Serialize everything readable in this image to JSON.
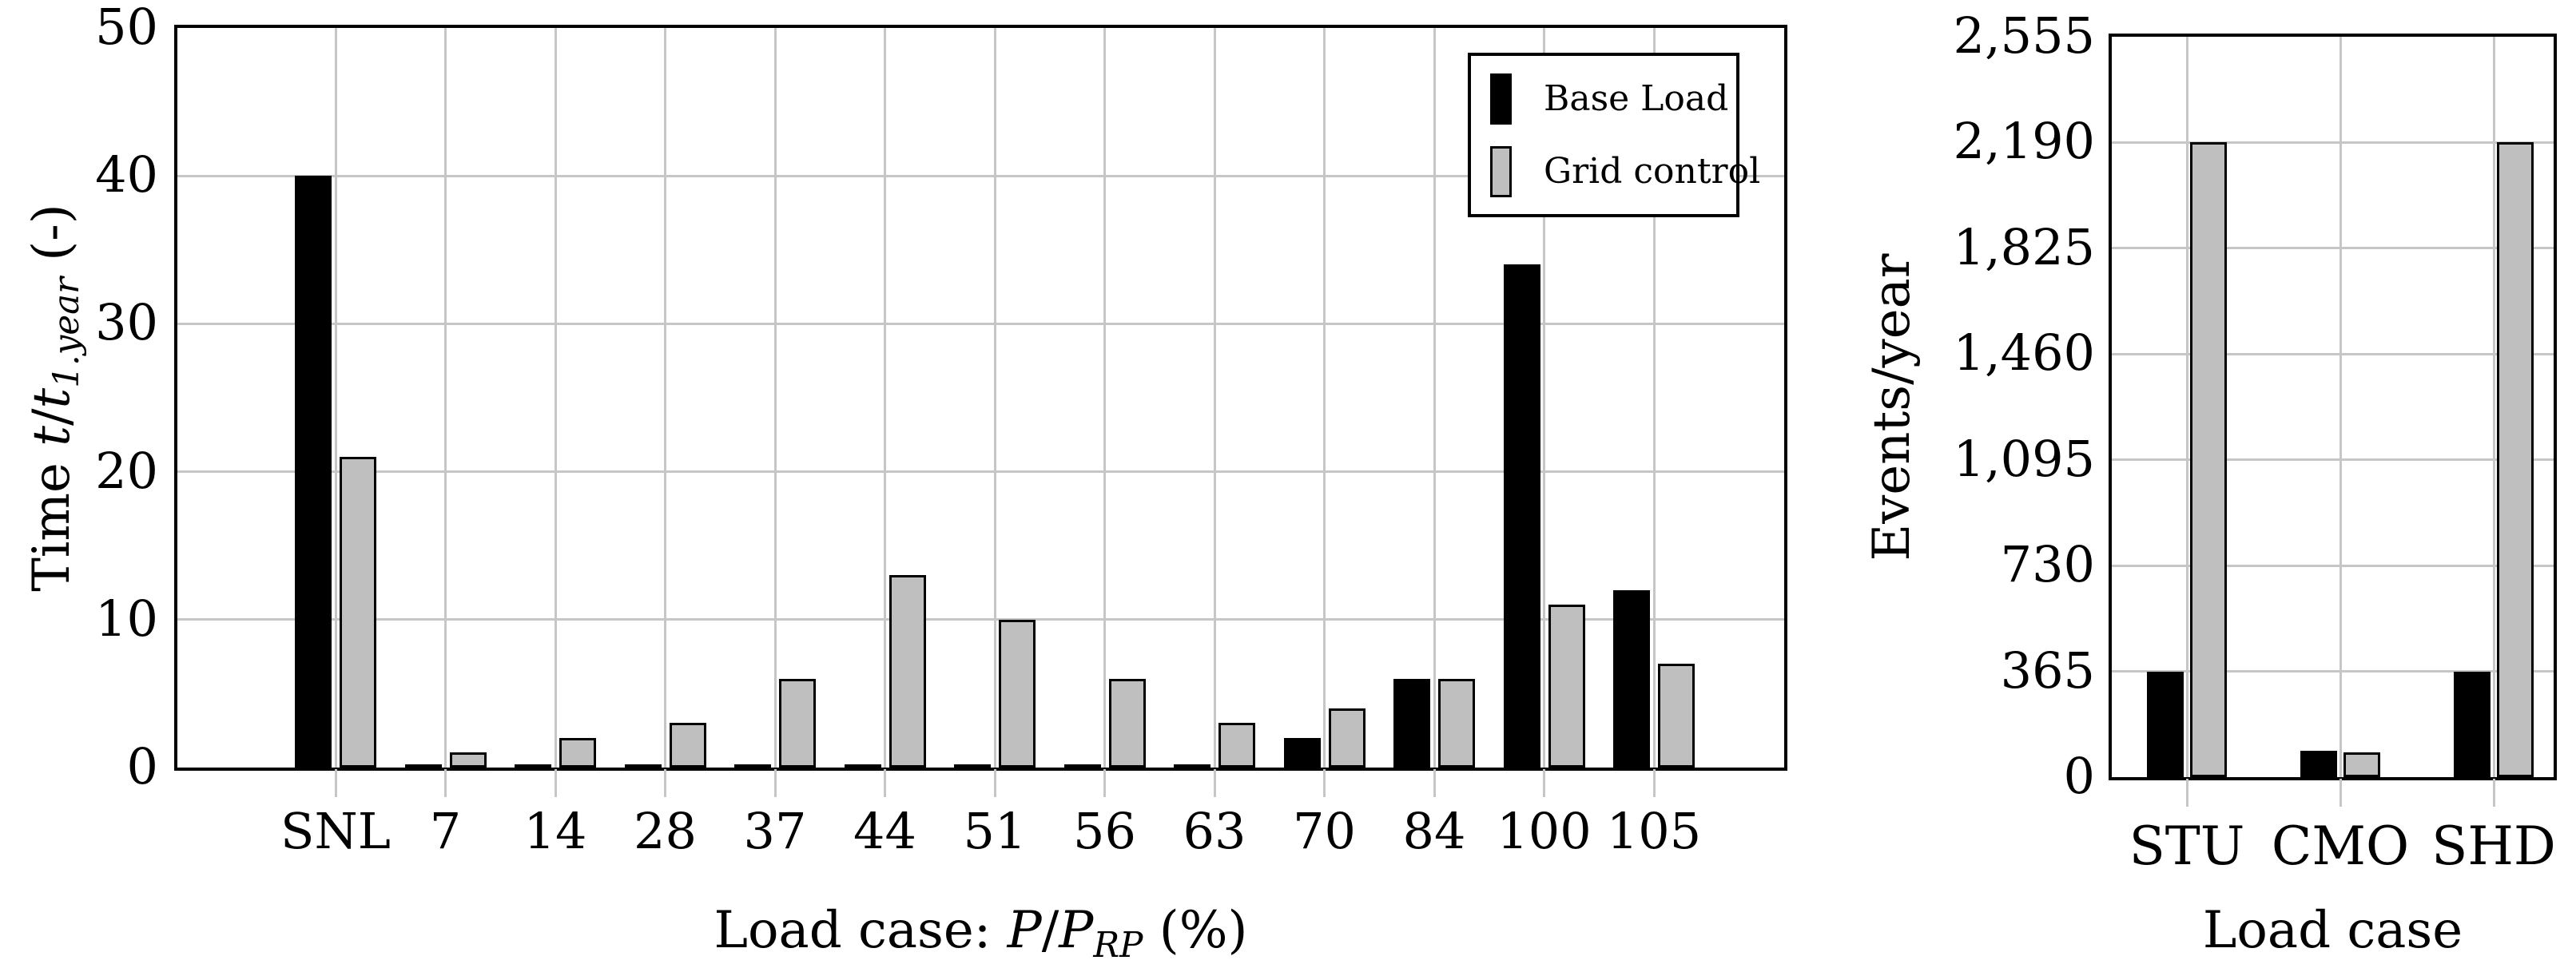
{
  "figure": {
    "background": "#ffffff",
    "colors": {
      "base_load": "#000000",
      "grid_control": "#bfbfbf",
      "gridline": "#c6c6c6",
      "axis": "#000000"
    },
    "legend": {
      "position": "top-right-of-left-chart",
      "items": [
        {
          "label": "Base Load",
          "swatch": "black-bar"
        },
        {
          "label": "Grid control",
          "swatch": "gray-bar"
        }
      ]
    }
  },
  "chart_data": [
    {
      "id": "time-by-load-case",
      "type": "bar",
      "title": "",
      "xlabel_plain": "Load case: P/P_RP (%)",
      "ylabel_plain": "Time t/t_1.year (-)",
      "xlabel_segments": [
        {
          "t": "Load case: "
        },
        {
          "t": "P",
          "i": true
        },
        {
          "t": "/"
        },
        {
          "t": "P",
          "i": true
        },
        {
          "t": "RP",
          "i": true,
          "sub": true
        },
        {
          "t": " (%)"
        }
      ],
      "ylabel_segments": [
        {
          "t": "Time "
        },
        {
          "t": "t",
          "i": true
        },
        {
          "t": "/"
        },
        {
          "t": "t",
          "i": true
        },
        {
          "t": "1.year",
          "i": true,
          "sub": true
        },
        {
          "t": " (-)"
        }
      ],
      "categories": [
        "SNL",
        "7",
        "14",
        "28",
        "37",
        "44",
        "51",
        "56",
        "63",
        "70",
        "84",
        "100",
        "105"
      ],
      "series": [
        {
          "name": "Base Load",
          "values": [
            40,
            0.2,
            0.2,
            0.2,
            0.2,
            0.2,
            0.2,
            0.2,
            0.2,
            2,
            6,
            34,
            12
          ]
        },
        {
          "name": "Grid control",
          "values": [
            21,
            1,
            2,
            3,
            6,
            13,
            10,
            6,
            3,
            4,
            6,
            11,
            7
          ]
        }
      ],
      "ylim": [
        0,
        50
      ],
      "yticks": [
        0,
        10,
        20,
        30,
        40,
        50
      ],
      "ytick_labels": [
        "0",
        "10",
        "20",
        "30",
        "40",
        "50"
      ],
      "grid": true,
      "legend_position": "top-right"
    },
    {
      "id": "events-by-load-case",
      "type": "bar",
      "title": "",
      "xlabel_plain": "Load case",
      "ylabel_plain": "Events/year",
      "xlabel_segments": [
        {
          "t": "Load case"
        }
      ],
      "ylabel_segments": [
        {
          "t": "Events/year"
        }
      ],
      "categories": [
        "STU",
        "CMO",
        "SHD"
      ],
      "series": [
        {
          "name": "Base Load",
          "values": [
            365,
            90,
            365
          ]
        },
        {
          "name": "Grid control",
          "values": [
            2190,
            85,
            2190
          ]
        }
      ],
      "ylim": [
        0,
        2555
      ],
      "yticks": [
        0,
        365,
        730,
        1095,
        1460,
        1825,
        2190,
        2555
      ],
      "ytick_labels": [
        "0",
        "365",
        "730",
        "1,095",
        "1,460",
        "1,825",
        "2,190",
        "2,555"
      ],
      "grid": true,
      "legend_position": "none"
    }
  ]
}
